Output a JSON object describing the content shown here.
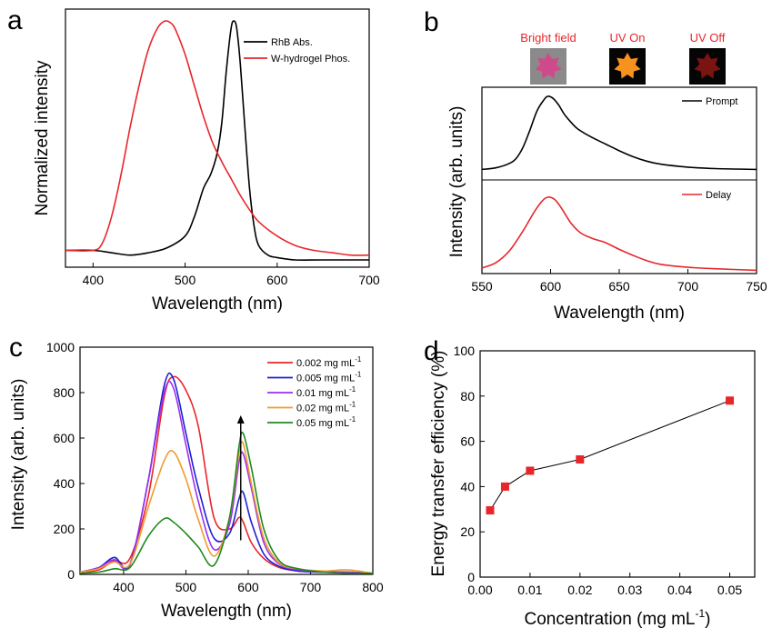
{
  "panels": {
    "a": {
      "label": "a"
    },
    "b": {
      "label": "b"
    },
    "c": {
      "label": "c"
    },
    "d": {
      "label": "d"
    }
  },
  "colors": {
    "black": "#000000",
    "red": "#e8262a",
    "blue": "#1f1fd6",
    "purple": "#9b2ff0",
    "orange": "#f29a2e",
    "green": "#1e8a1e"
  },
  "chart_data": [
    {
      "id": "a",
      "type": "line",
      "title": "",
      "xlabel": "Wavelength (nm)",
      "ylabel": "Normalized intensity",
      "xlim": [
        370,
        700
      ],
      "ylim": [
        0,
        1.05
      ],
      "xticks": [
        400,
        500,
        600,
        700
      ],
      "yticks_shown": false,
      "legend_position": "top-right",
      "series": [
        {
          "name": "RhB Abs.",
          "color": "#000000",
          "x": [
            370,
            400,
            420,
            440,
            460,
            480,
            500,
            510,
            520,
            528,
            535,
            540,
            545,
            550,
            553,
            556,
            560,
            565,
            570,
            575,
            580,
            590,
            600,
            620,
            650,
            700
          ],
          "y": [
            0.04,
            0.04,
            0.03,
            0.02,
            0.03,
            0.05,
            0.1,
            0.18,
            0.3,
            0.36,
            0.45,
            0.58,
            0.8,
            0.97,
            1.0,
            0.97,
            0.82,
            0.55,
            0.3,
            0.14,
            0.06,
            0.02,
            0.01,
            0.0,
            0.0,
            0.0
          ]
        },
        {
          "name": "W-hydrogel Phos.",
          "color": "#e8262a",
          "x": [
            370,
            400,
            410,
            420,
            430,
            440,
            450,
            460,
            470,
            478,
            485,
            490,
            500,
            510,
            520,
            530,
            540,
            550,
            560,
            570,
            580,
            600,
            620,
            640,
            660,
            680,
            700
          ],
          "y": [
            0.04,
            0.04,
            0.07,
            0.18,
            0.35,
            0.55,
            0.73,
            0.88,
            0.97,
            1.0,
            0.99,
            0.96,
            0.86,
            0.73,
            0.6,
            0.49,
            0.41,
            0.34,
            0.27,
            0.21,
            0.16,
            0.1,
            0.06,
            0.04,
            0.03,
            0.02,
            0.02
          ]
        }
      ]
    },
    {
      "id": "b",
      "type": "line",
      "title": "",
      "xlabel": "Wavelength (nm)",
      "ylabel": "Intensity (arb. units)",
      "xlim": [
        550,
        750
      ],
      "xticks": [
        550,
        600,
        650,
        700,
        750
      ],
      "stacked_panels": true,
      "legend_position": "top-right",
      "images": [
        {
          "label": "Bright field",
          "color": "#cf4a8a"
        },
        {
          "label": "UV On",
          "color": "#f7921e"
        },
        {
          "label": "UV Off",
          "color": "#7a1410"
        }
      ],
      "series": [
        {
          "name": "Prompt",
          "color": "#000000",
          "panel": "top",
          "x": [
            550,
            560,
            570,
            575,
            580,
            585,
            590,
            595,
            598,
            602,
            606,
            610,
            615,
            620,
            630,
            640,
            650,
            660,
            670,
            680,
            700,
            720,
            750
          ],
          "y": [
            0.02,
            0.04,
            0.1,
            0.17,
            0.32,
            0.55,
            0.8,
            0.95,
            1.0,
            0.97,
            0.88,
            0.76,
            0.65,
            0.56,
            0.45,
            0.36,
            0.27,
            0.19,
            0.13,
            0.09,
            0.05,
            0.03,
            0.02
          ]
        },
        {
          "name": "Delay",
          "color": "#e8262a",
          "panel": "bottom",
          "x": [
            550,
            560,
            570,
            580,
            588,
            594,
            598,
            603,
            608,
            615,
            622,
            630,
            640,
            650,
            660,
            670,
            680,
            700,
            720,
            750
          ],
          "y": [
            0.05,
            0.12,
            0.28,
            0.55,
            0.8,
            0.95,
            1.0,
            0.97,
            0.85,
            0.65,
            0.52,
            0.45,
            0.39,
            0.3,
            0.22,
            0.15,
            0.1,
            0.06,
            0.04,
            0.02
          ]
        }
      ]
    },
    {
      "id": "c",
      "type": "line",
      "title": "",
      "xlabel": "Wavelength (nm)",
      "ylabel": "Intensity (arb. units)",
      "xlim": [
        330,
        800
      ],
      "ylim": [
        0,
        1000
      ],
      "xticks": [
        400,
        500,
        600,
        700,
        800
      ],
      "yticks": [
        0,
        200,
        400,
        600,
        800,
        1000
      ],
      "legend_position": "top-right",
      "arrow": {
        "x": 588,
        "y_from": 150,
        "y_to": 700
      },
      "x": [
        330,
        360,
        385,
        410,
        440,
        465,
        480,
        500,
        520,
        545,
        570,
        585,
        592,
        605,
        625,
        650,
        680,
        720,
        760,
        800
      ],
      "series": [
        {
          "name": "0.002 mg mL",
          "sup": "-1",
          "color": "#e8262a",
          "values": [
            10,
            20,
            60,
            70,
            350,
            780,
            870,
            810,
            650,
            250,
            200,
            250,
            230,
            140,
            70,
            30,
            15,
            10,
            10,
            5
          ]
        },
        {
          "name": "0.005 mg mL",
          "sup": "-1",
          "color": "#1f1fd6",
          "values": [
            10,
            30,
            75,
            45,
            420,
            830,
            860,
            620,
            380,
            160,
            180,
            330,
            360,
            230,
            90,
            35,
            15,
            10,
            10,
            5
          ]
        },
        {
          "name": "0.01 mg mL",
          "sup": "-1",
          "color": "#9b2ff0",
          "values": [
            10,
            30,
            65,
            40,
            420,
            800,
            820,
            570,
            320,
            110,
            220,
            490,
            530,
            380,
            140,
            45,
            20,
            10,
            10,
            5
          ]
        },
        {
          "name": "0.02 mg mL",
          "sup": "-1",
          "color": "#f29a2e",
          "values": [
            10,
            25,
            55,
            45,
            300,
            500,
            540,
            420,
            240,
            80,
            250,
            530,
            575,
            400,
            160,
            50,
            25,
            15,
            20,
            5
          ]
        },
        {
          "name": "0.05 mg mL",
          "sup": "-1",
          "color": "#1e8a1e",
          "values": [
            5,
            10,
            25,
            30,
            170,
            245,
            230,
            180,
            120,
            40,
            250,
            560,
            620,
            470,
            200,
            60,
            25,
            10,
            5,
            5
          ]
        }
      ]
    },
    {
      "id": "d",
      "type": "scatter",
      "title": "",
      "xlabel": "Concentration (mg mL",
      "xlabel_sup": "-1",
      "xlabel_end": ")",
      "ylabel": "Energy transfer efficiency (%)",
      "xlim": [
        0,
        0.055
      ],
      "ylim": [
        0,
        100
      ],
      "xticks": [
        "0.00",
        "0.01",
        "0.02",
        "0.03",
        "0.04",
        "0.05"
      ],
      "yticks": [
        0,
        20,
        40,
        60,
        80,
        100
      ],
      "connected": true,
      "marker_color": "#e8262a",
      "x": [
        0.002,
        0.005,
        0.01,
        0.02,
        0.05
      ],
      "y": [
        29.5,
        40,
        47,
        52,
        78
      ]
    }
  ]
}
